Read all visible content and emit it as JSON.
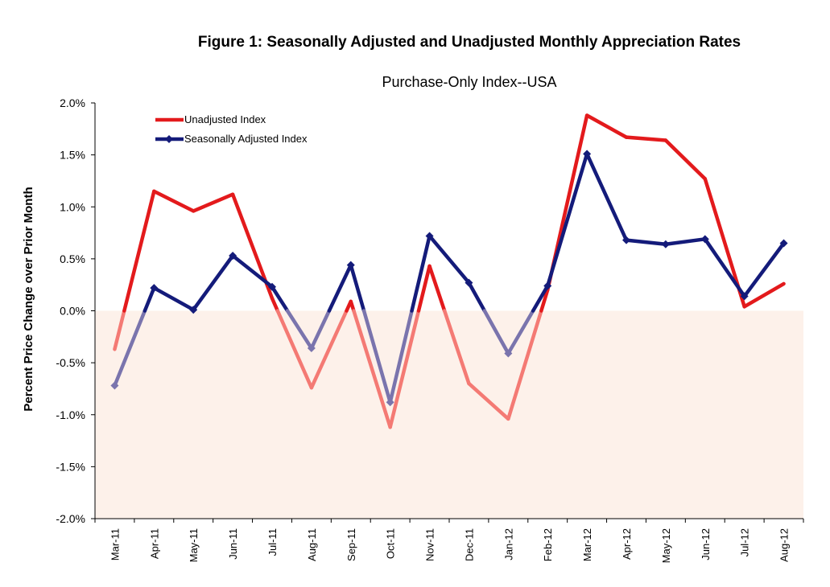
{
  "chart_data": {
    "type": "line",
    "figure_title": "Figure 1: Seasonally Adjusted and Unadjusted Monthly Appreciation Rates",
    "title": "Purchase-Only Index--USA",
    "xlabel": "",
    "ylabel": "Percent Price Change over Prior Month",
    "ylim": [
      -2.0,
      2.0
    ],
    "yticks": [
      "2.0%",
      "1.5%",
      "1.0%",
      "0.5%",
      "0.0%",
      "-0.5%",
      "-1.0%",
      "-1.5%",
      "-2.0%"
    ],
    "ytick_values": [
      2.0,
      1.5,
      1.0,
      0.5,
      0.0,
      -0.5,
      -1.0,
      -1.5,
      -2.0
    ],
    "categories": [
      "Mar-11",
      "Apr-11",
      "May-11",
      "Jun-11",
      "Jul-11",
      "Aug-11",
      "Sep-11",
      "Oct-11",
      "Nov-11",
      "Dec-11",
      "Jan-12",
      "Feb-12",
      "Mar-12",
      "Apr-12",
      "May-12",
      "Jun-12",
      "Jul-12",
      "Aug-12"
    ],
    "series": [
      {
        "name": "Unadjusted Index",
        "color": "#e31a1c",
        "negative_color": "#f47a74",
        "marker": "none",
        "values": [
          -0.37,
          1.15,
          0.96,
          1.12,
          0.12,
          -0.74,
          0.09,
          -1.12,
          0.43,
          -0.7,
          -1.04,
          0.2,
          1.88,
          1.67,
          1.64,
          1.27,
          0.04,
          0.26
        ]
      },
      {
        "name": "Seasonally Adjusted Index",
        "color": "#141b7a",
        "negative_color": "#7a74ad",
        "marker": "diamond",
        "values": [
          -0.72,
          0.22,
          0.01,
          0.53,
          0.23,
          -0.36,
          0.44,
          -0.88,
          0.72,
          0.27,
          -0.41,
          0.24,
          1.51,
          0.68,
          0.64,
          0.69,
          0.14,
          0.65
        ]
      }
    ],
    "negative_region_color": "#fdf1ea",
    "legend_position": "top-left"
  }
}
